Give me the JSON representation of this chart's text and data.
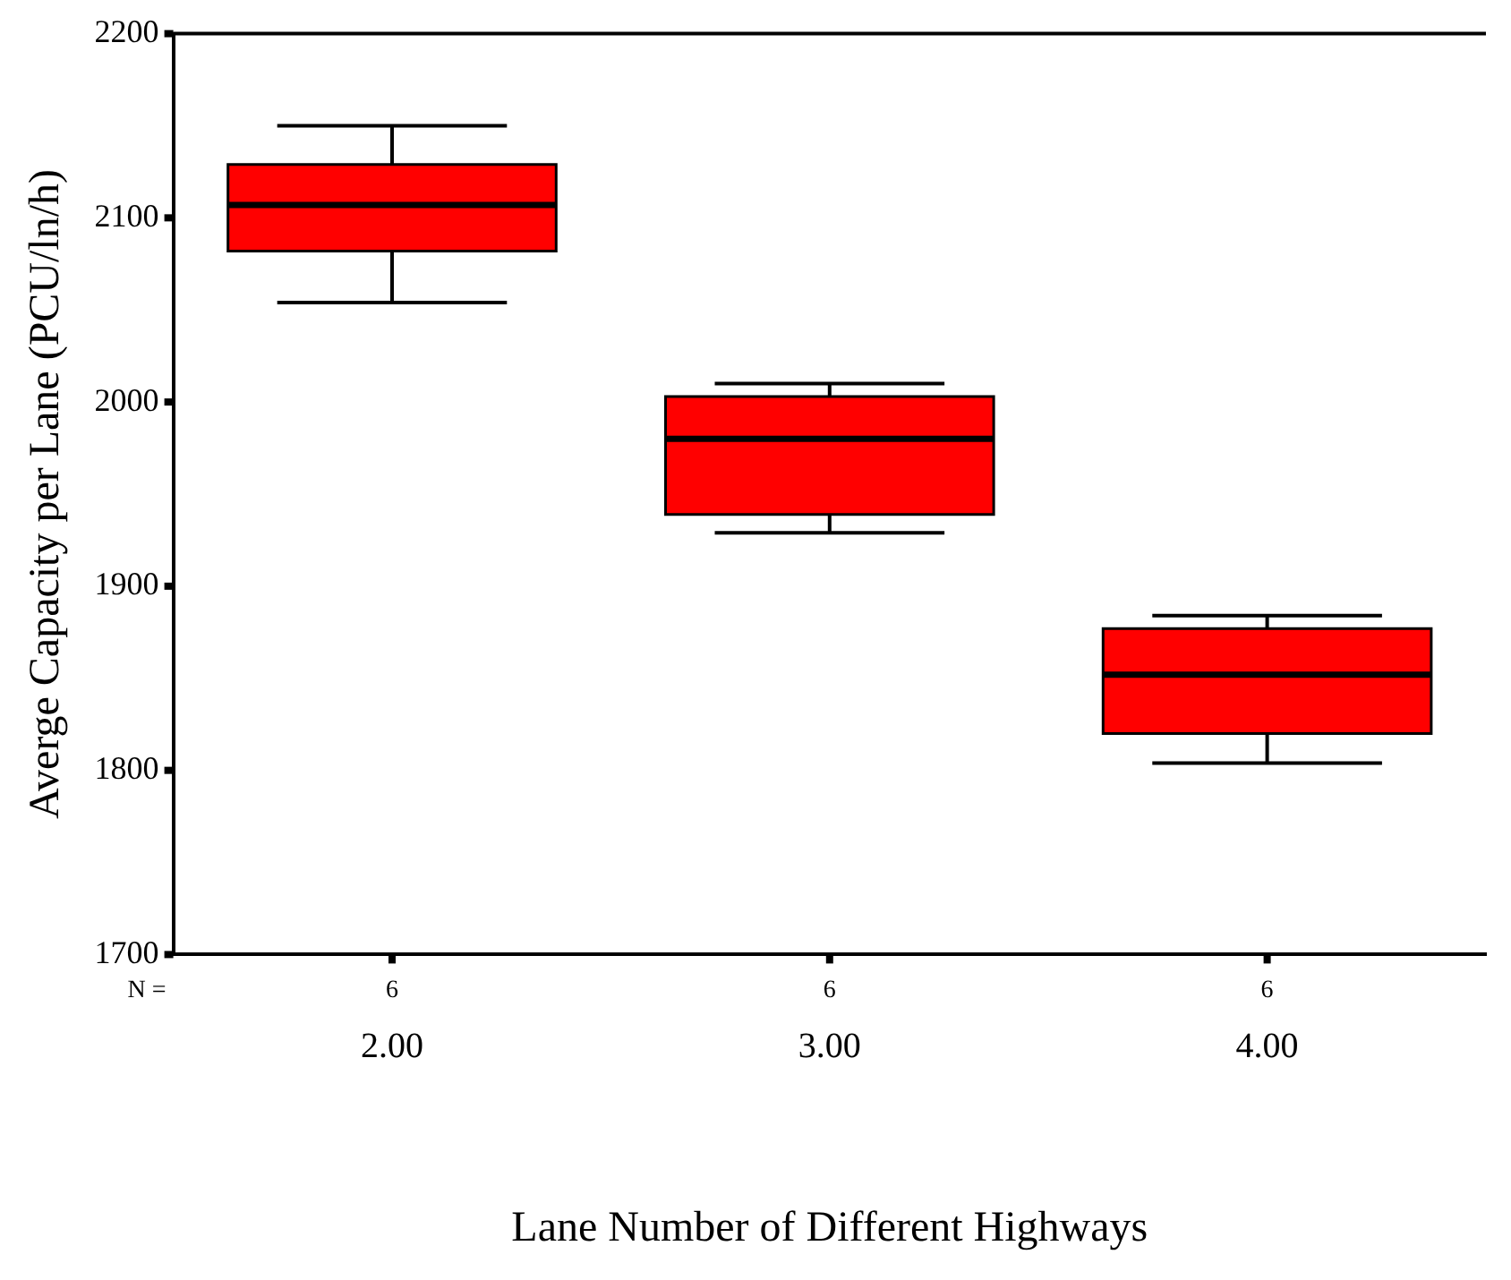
{
  "chart_data": {
    "type": "box",
    "xlabel": "Lane Number of Different Highways",
    "ylabel": "Averge Capacity per Lane (PCU/ln/h)",
    "categories": [
      "2.00",
      "3.00",
      "4.00"
    ],
    "boxes": [
      {
        "low": 2054,
        "q1": 2082,
        "median": 2107,
        "q3": 2129,
        "high": 2150
      },
      {
        "low": 1929,
        "q1": 1939,
        "median": 1980,
        "q3": 2003,
        "high": 2010
      },
      {
        "low": 1804,
        "q1": 1820,
        "median": 1852,
        "q3": 1877,
        "high": 1884
      }
    ],
    "color": "#ff0000",
    "ylim": [
      1700,
      2200
    ],
    "yticks": [
      1700,
      1800,
      1900,
      2000,
      2100,
      2200
    ],
    "grid": false,
    "legend": false,
    "annotations": [
      "N =",
      "6",
      "6",
      "6"
    ]
  }
}
